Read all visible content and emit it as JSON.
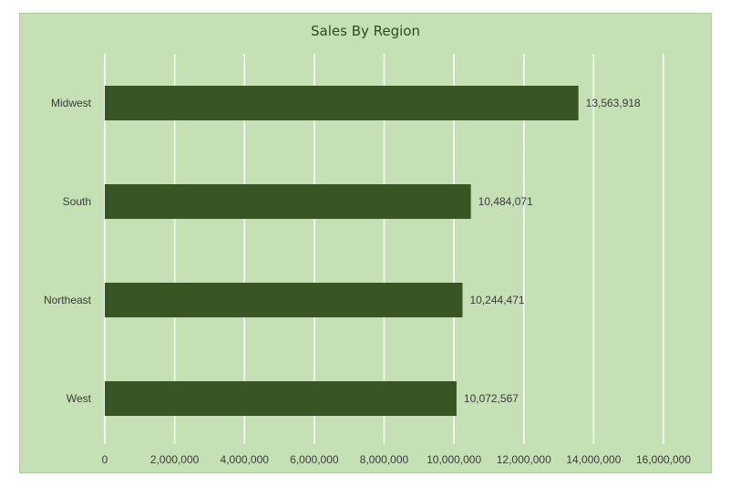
{
  "chart_data": {
    "type": "bar",
    "orientation": "horizontal",
    "title": "Sales By Region",
    "categories": [
      "Midwest",
      "South",
      "Northeast",
      "West"
    ],
    "values": [
      13563918,
      10484071,
      10244471,
      10072567
    ],
    "value_labels": [
      "13,563,918",
      "10,484,071",
      "10,244,471",
      "10,072,567"
    ],
    "xlim": [
      0,
      16000000
    ],
    "x_ticks": [
      0,
      2000000,
      4000000,
      6000000,
      8000000,
      10000000,
      12000000,
      14000000,
      16000000
    ],
    "x_tick_labels": [
      "0",
      "2,000,000",
      "4,000,000",
      "6,000,000",
      "8,000,000",
      "10,000,000",
      "12,000,000",
      "14,000,000",
      "16,000,000"
    ],
    "xlabel": "",
    "ylabel": "",
    "grid": true,
    "legend": "none",
    "colors": {
      "background": "#c5e0b4",
      "bar": "#375623",
      "grid": "#ffffff",
      "title": "#2e4a1f",
      "text": "#3b3b3b"
    }
  }
}
